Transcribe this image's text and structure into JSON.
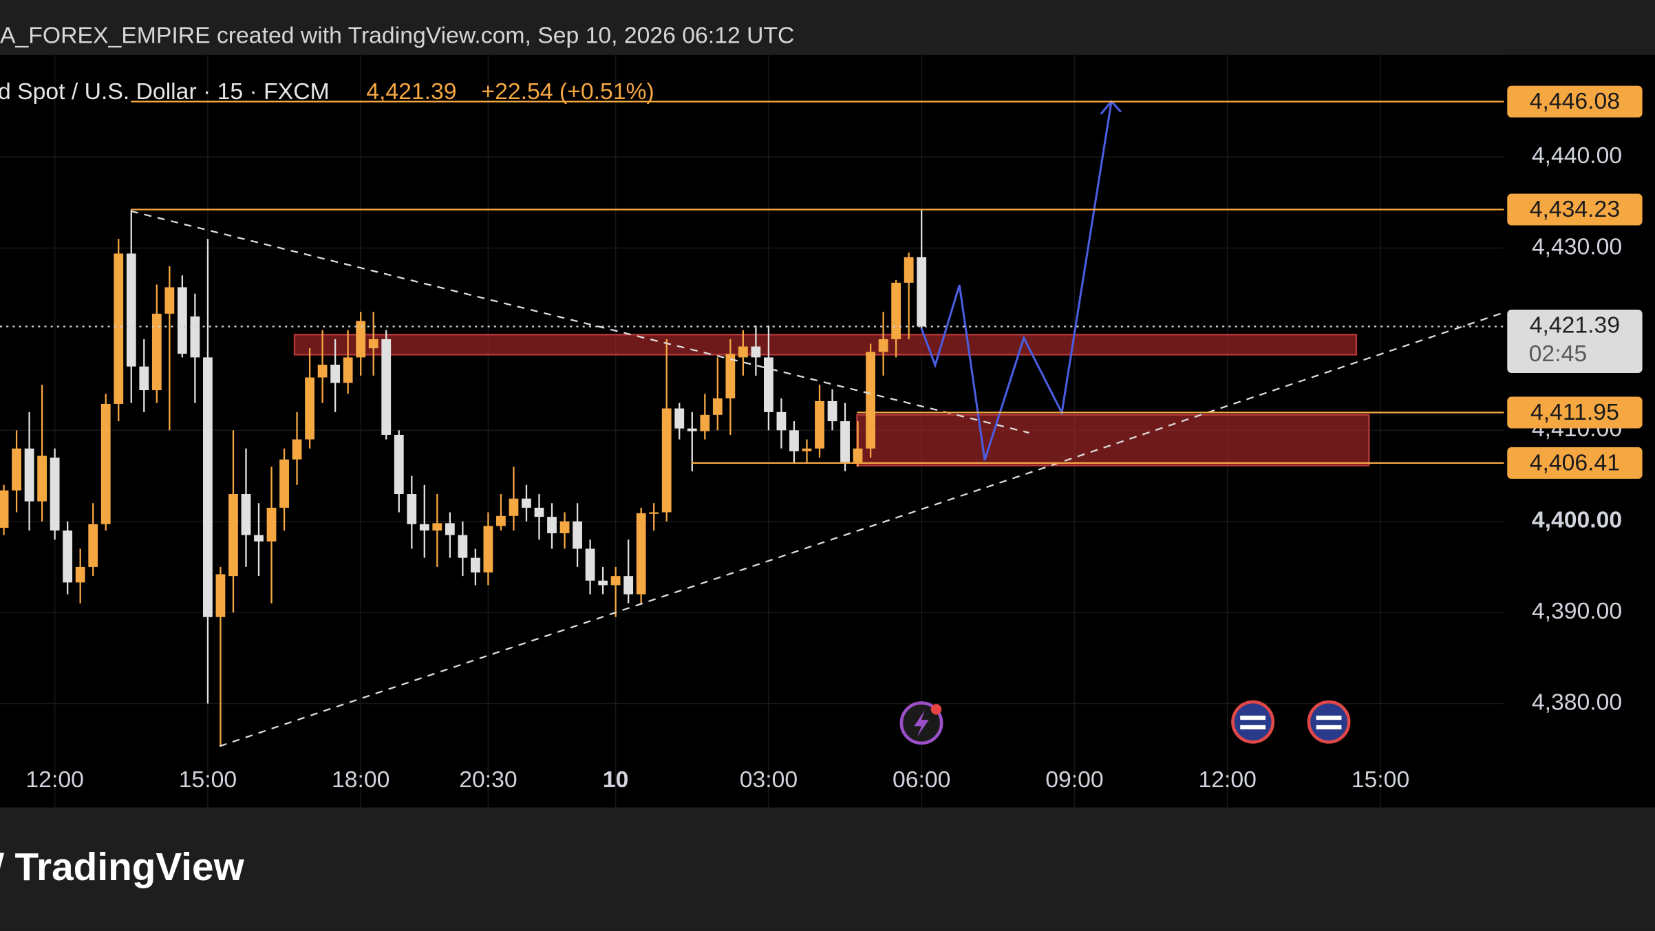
{
  "chart_data": {
    "type": "candlestick",
    "attribution": "A_FOREX_EMPIRE created with TradingView.com, Sep 10, 2026 06:12 UTC",
    "title": "d Spot / U.S. Dollar · 15 · FXCM",
    "last_price": {
      "value": 4421.39,
      "label": "4,421.39"
    },
    "change": "+22.54 (+0.51%)",
    "countdown": "02:45",
    "brand": "TradingView",
    "up_color": "#f5a742",
    "down_color": "#e0e0e0",
    "grid": true,
    "x": [
      0,
      1,
      2,
      3,
      4,
      5,
      6,
      7,
      8,
      9,
      10,
      11,
      12,
      13,
      14,
      15,
      16,
      17,
      18,
      19,
      20,
      21,
      22,
      23,
      24,
      25,
      26,
      27,
      28,
      29,
      30,
      31,
      32,
      33,
      34,
      35,
      36,
      37,
      38,
      39,
      40,
      41,
      42,
      43,
      44,
      45,
      46,
      47,
      48,
      49,
      50,
      51,
      52,
      53,
      54,
      55,
      56,
      57,
      58,
      59,
      60,
      61,
      62,
      63,
      64,
      65,
      66,
      67,
      68,
      69,
      70,
      71,
      72
    ],
    "open": [
      4399.3,
      4403.4,
      4408,
      4402.2,
      4407,
      4399,
      4393.3,
      4395,
      4399.7,
      4412.9,
      4429.4,
      4417,
      4414.4,
      4422.8,
      4425.7,
      4422.5,
      4418,
      4389.5,
      4394,
      4403,
      4398.5,
      4397.8,
      4401.5,
      4406.8,
      4409,
      4415.8,
      4417.2,
      4415.2,
      4418,
      4419,
      4420,
      4409.5,
      4403,
      4399.7,
      4399,
      4399.8,
      4398.5,
      4396,
      4394.4,
      4399.5,
      4400.6,
      4402.5,
      4401.5,
      4400.5,
      4398.7,
      4400,
      4397,
      4393.5,
      4393,
      4394,
      4392,
      4400.9,
      4401,
      4412.4,
      4410.2,
      4409.9,
      4411.7,
      4413.5,
      4418,
      4419.2,
      4418,
      4412,
      4410,
      4407.7,
      4408,
      4413.2,
      4411,
      4406.5,
      4408,
      4418.6,
      4420,
      4426.2,
      4429
    ],
    "high": [
      4404,
      4410,
      4412,
      4415,
      4408,
      4400,
      4397,
      4402,
      4414,
      4431,
      4434.2,
      4420,
      4426,
      4428,
      4427,
      4425,
      4431,
      4395,
      4410,
      4408,
      4402,
      4406,
      4408,
      4412,
      4419,
      4421,
      4420,
      4421,
      4423,
      4423,
      4421,
      4410,
      4405,
      4404,
      4403,
      4401,
      4400,
      4397,
      4401,
      4403,
      4406,
      4404,
      4403,
      4402,
      4401,
      4402,
      4398,
      4395,
      4395,
      4398,
      4401.5,
      4402,
      4420,
      4413,
      4412,
      4414,
      4418,
      4420,
      4421,
      4421.5,
      4421.5,
      4413.5,
      4411,
      4409,
      4415,
      4414.5,
      4413,
      4411,
      4419.5,
      4423,
      4426.5,
      4429.5,
      4434.23
    ],
    "low": [
      4398.5,
      4401,
      4399,
      4400,
      4398,
      4392,
      4391,
      4394,
      4399,
      4411,
      4413,
      4412,
      4413,
      4410,
      4418,
      4413,
      4380,
      4375.3,
      4390,
      4395,
      4394,
      4391,
      4399,
      4404,
      4408,
      4413,
      4412,
      4414,
      4416,
      4416,
      4409,
      4401,
      4397,
      4396,
      4395,
      4396,
      4394,
      4393,
      4393,
      4399,
      4399,
      4400,
      4398,
      4397,
      4397,
      4395,
      4392,
      4392,
      4389.5,
      4391,
      4391,
      4399,
      4400,
      4409,
      4405.5,
      4409,
      4410,
      4409.5,
      4416,
      4416,
      4410,
      4408,
      4406.4,
      4406.5,
      4407,
      4410,
      4405.5,
      4406,
      4407,
      4416,
      4418,
      4420,
      4421
    ],
    "close": [
      4403.4,
      4408,
      4402.2,
      4407.2,
      4399,
      4393.3,
      4395,
      4399.7,
      4412.9,
      4429.4,
      4417,
      4414.4,
      4422.8,
      4425.7,
      4418.4,
      4418,
      4389.5,
      4394.2,
      4403,
      4398.5,
      4397.8,
      4401.5,
      4406.8,
      4409,
      4415.8,
      4417.2,
      4415.2,
      4418,
      4422,
      4420,
      4409.5,
      4403,
      4399.7,
      4399,
      4399.8,
      4398.5,
      4396,
      4394.4,
      4399.5,
      4400.6,
      4402.5,
      4401.5,
      4400.5,
      4398.7,
      4400,
      4397,
      4393.5,
      4393,
      4394,
      4392,
      4400.9,
      4401,
      4412.4,
      4410.2,
      4409.9,
      4411.7,
      4413.5,
      4418.4,
      4419.2,
      4418,
      4412,
      4410,
      4407.7,
      4408,
      4413.2,
      4411,
      4406.5,
      4408,
      4418.6,
      4420,
      4426.2,
      4429,
      4421.39
    ],
    "xlim": [
      -0.3,
      117.7
    ],
    "ylim": [
      4368.6,
      4451.2
    ],
    "xticks": [
      {
        "value": 4,
        "label": "12:00"
      },
      {
        "value": 16,
        "label": "15:00"
      },
      {
        "value": 28,
        "label": "18:00"
      },
      {
        "value": 38,
        "label": "20:30"
      },
      {
        "value": 48,
        "label": "10"
      },
      {
        "value": 60,
        "label": "03:00"
      },
      {
        "value": 72,
        "label": "06:00"
      },
      {
        "value": 84,
        "label": "09:00"
      },
      {
        "value": 96,
        "label": "12:00"
      },
      {
        "value": 108,
        "label": "15:00"
      }
    ],
    "yticks": [
      {
        "value": 4440,
        "label": "4,440.00"
      },
      {
        "value": 4430,
        "label": "4,430.00"
      },
      {
        "value": 4410,
        "label": "4,410.00"
      },
      {
        "value": 4400,
        "label": "4,400.00"
      },
      {
        "value": 4390,
        "label": "4,390.00"
      },
      {
        "value": 4380,
        "label": "4,380.00"
      }
    ],
    "levels": [
      {
        "value": 4446.08,
        "label": "4,446.08"
      },
      {
        "value": 4434.23,
        "label": "4,434.23"
      },
      {
        "value": 4411.95,
        "label": "4,411.95"
      },
      {
        "value": 4406.41,
        "label": "4,406.41"
      }
    ]
  }
}
